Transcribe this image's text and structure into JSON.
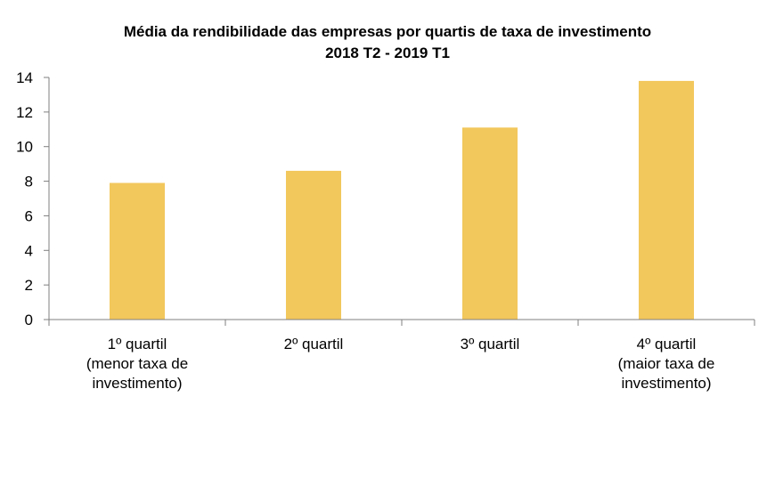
{
  "chart_data": {
    "type": "bar",
    "title": "Média da rendibilidade das empresas por quartis de taxa de investimento",
    "subtitle": "2018 T2 - 2019 T1",
    "categories": [
      [
        "1º quartil",
        "(menor taxa de",
        "investimento)"
      ],
      [
        "2º quartil"
      ],
      [
        "3º quartil"
      ],
      [
        "4º quartil",
        "(maior taxa de",
        "investimento)"
      ]
    ],
    "values": [
      7.9,
      8.6,
      11.1,
      13.8
    ],
    "ylim": [
      0,
      14
    ],
    "yticks": [
      0,
      2,
      4,
      6,
      8,
      10,
      12,
      14
    ],
    "xlabel": "",
    "ylabel": "",
    "grid": false,
    "legend": "none",
    "bar_color": "#F2C75C",
    "axis_color": "#7f7f7f"
  }
}
